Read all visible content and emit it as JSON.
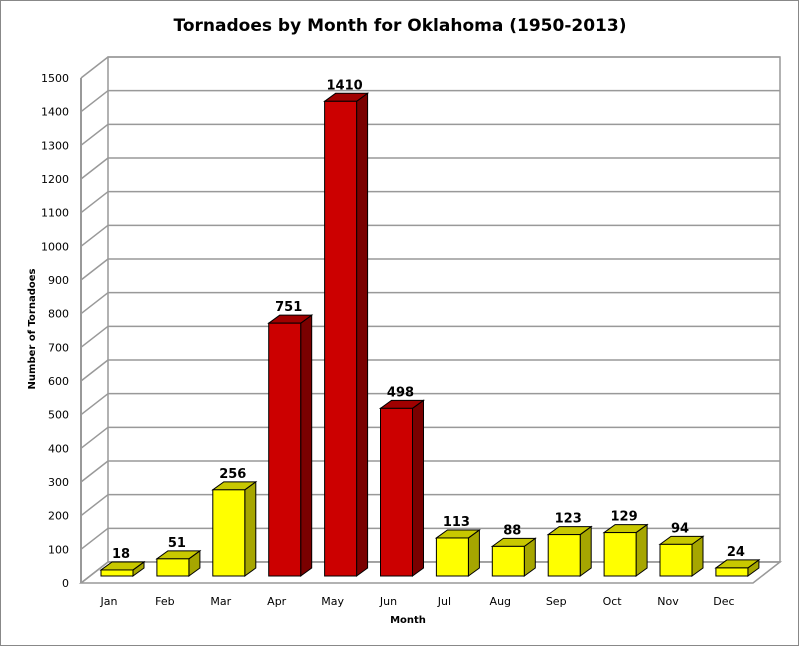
{
  "chart_data": {
    "type": "bar",
    "title": "Tornadoes  by Month  for Oklahoma  (1950-2013)",
    "xlabel": "Month",
    "ylabel": "Number of Tornadoes",
    "ylim": [
      0,
      1500
    ],
    "ytick_step": 100,
    "grid": true,
    "style": "3d",
    "categories": [
      "Jan",
      "Feb",
      "Mar",
      "Apr",
      "May",
      "Jun",
      "Jul",
      "Aug",
      "Sep",
      "Oct",
      "Nov",
      "Dec"
    ],
    "values": [
      18,
      51,
      256,
      751,
      1410,
      498,
      113,
      88,
      123,
      129,
      94,
      24
    ],
    "bar_colors": [
      "yellow",
      "yellow",
      "yellow",
      "red",
      "red",
      "red",
      "yellow",
      "yellow",
      "yellow",
      "yellow",
      "yellow",
      "yellow"
    ],
    "colors": {
      "yellow": {
        "front": "#ffff00",
        "top": "#c8c800",
        "side": "#a6a600"
      },
      "red": {
        "front": "#cc0000",
        "top": "#a00000",
        "side": "#7a0000"
      }
    }
  }
}
